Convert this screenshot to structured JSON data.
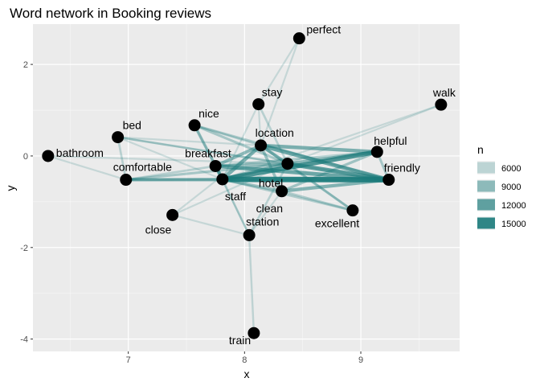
{
  "chart_data": {
    "type": "scatter",
    "title": "Word network in Booking reviews",
    "xlabel": "x",
    "ylabel": "y",
    "xlim": [
      6.18,
      9.85
    ],
    "ylim": [
      -4.27,
      2.88
    ],
    "x_ticks": [
      7,
      8,
      9
    ],
    "y_ticks": [
      -4,
      -2,
      0,
      2
    ],
    "grid": true,
    "nodes": [
      {
        "label": "perfect",
        "x": 8.47,
        "y": 2.57
      },
      {
        "label": "walk",
        "x": 9.69,
        "y": 1.12
      },
      {
        "label": "stay",
        "x": 8.12,
        "y": 1.13
      },
      {
        "label": "nice",
        "x": 7.57,
        "y": 0.67
      },
      {
        "label": "bed",
        "x": 6.91,
        "y": 0.41
      },
      {
        "label": "location",
        "x": 8.14,
        "y": 0.23
      },
      {
        "label": "helpful",
        "x": 9.14,
        "y": 0.09
      },
      {
        "label": "bathroom",
        "x": 6.31,
        "y": 0.0
      },
      {
        "label": "breakfast",
        "x": 7.75,
        "y": -0.22
      },
      {
        "label": "hotel",
        "x": 8.37,
        "y": -0.17
      },
      {
        "label": "friendly",
        "x": 9.24,
        "y": -0.52
      },
      {
        "label": "comfortable",
        "x": 6.98,
        "y": -0.52
      },
      {
        "label": "staff",
        "x": 7.81,
        "y": -0.51
      },
      {
        "label": "clean",
        "x": 8.32,
        "y": -0.77
      },
      {
        "label": "excellent",
        "x": 8.93,
        "y": -1.19
      },
      {
        "label": "close",
        "x": 7.38,
        "y": -1.29
      },
      {
        "label": "station",
        "x": 8.04,
        "y": -1.73
      },
      {
        "label": "train",
        "x": 8.08,
        "y": -3.87
      }
    ],
    "edges": [
      {
        "from": "staff",
        "to": "friendly",
        "n": 15000
      },
      {
        "from": "staff",
        "to": "helpful",
        "n": 13000
      },
      {
        "from": "hotel",
        "to": "friendly",
        "n": 12000
      },
      {
        "from": "breakfast",
        "to": "friendly",
        "n": 11000
      },
      {
        "from": "location",
        "to": "friendly",
        "n": 11000
      },
      {
        "from": "breakfast",
        "to": "staff",
        "n": 10000
      },
      {
        "from": "staff",
        "to": "hotel",
        "n": 10000
      },
      {
        "from": "location",
        "to": "helpful",
        "n": 10000
      },
      {
        "from": "location",
        "to": "staff",
        "n": 10000
      },
      {
        "from": "clean",
        "to": "friendly",
        "n": 9500
      },
      {
        "from": "location",
        "to": "breakfast",
        "n": 9000
      },
      {
        "from": "comfortable",
        "to": "friendly",
        "n": 9000
      },
      {
        "from": "hotel",
        "to": "helpful",
        "n": 9000
      },
      {
        "from": "location",
        "to": "hotel",
        "n": 9000
      },
      {
        "from": "staff",
        "to": "clean",
        "n": 8000
      },
      {
        "from": "breakfast",
        "to": "hotel",
        "n": 8000
      },
      {
        "from": "nice",
        "to": "staff",
        "n": 8000
      },
      {
        "from": "location",
        "to": "clean",
        "n": 8000
      },
      {
        "from": "comfortable",
        "to": "staff",
        "n": 7500
      },
      {
        "from": "clean",
        "to": "helpful",
        "n": 7500
      },
      {
        "from": "comfortable",
        "to": "hotel",
        "n": 7000
      },
      {
        "from": "nice",
        "to": "hotel",
        "n": 7000
      },
      {
        "from": "location",
        "to": "excellent",
        "n": 7000
      },
      {
        "from": "nice",
        "to": "friendly",
        "n": 6500
      },
      {
        "from": "clean",
        "to": "excellent",
        "n": 6500
      },
      {
        "from": "staff",
        "to": "excellent",
        "n": 6500
      },
      {
        "from": "breakfast",
        "to": "helpful",
        "n": 6500
      },
      {
        "from": "stay",
        "to": "hotel",
        "n": 6000
      },
      {
        "from": "bed",
        "to": "comfortable",
        "n": 6000
      },
      {
        "from": "bed",
        "to": "hotel",
        "n": 6000
      },
      {
        "from": "bed",
        "to": "friendly",
        "n": 5500
      },
      {
        "from": "nice",
        "to": "location",
        "n": 6000
      },
      {
        "from": "comfortable",
        "to": "breakfast",
        "n": 6000
      },
      {
        "from": "station",
        "to": "train",
        "n": 5500
      },
      {
        "from": "station",
        "to": "staff",
        "n": 6000
      },
      {
        "from": "station",
        "to": "hotel",
        "n": 6000
      },
      {
        "from": "station",
        "to": "clean",
        "n": 5000
      },
      {
        "from": "station",
        "to": "breakfast",
        "n": 5000
      },
      {
        "from": "close",
        "to": "station",
        "n": 5000
      },
      {
        "from": "close",
        "to": "hotel",
        "n": 5000
      },
      {
        "from": "close",
        "to": "location",
        "n": 5000
      },
      {
        "from": "perfect",
        "to": "location",
        "n": 5000
      },
      {
        "from": "perfect",
        "to": "stay",
        "n": 5000
      },
      {
        "from": "walk",
        "to": "hotel",
        "n": 5000
      },
      {
        "from": "walk",
        "to": "staff",
        "n": 5000
      },
      {
        "from": "bathroom",
        "to": "hotel",
        "n": 5000
      },
      {
        "from": "bathroom",
        "to": "comfortable",
        "n": 5000
      },
      {
        "from": "stay",
        "to": "staff",
        "n": 5000
      },
      {
        "from": "stay",
        "to": "location",
        "n": 5000
      },
      {
        "from": "excellent",
        "to": "hotel",
        "n": 6000
      },
      {
        "from": "bed",
        "to": "staff",
        "n": 5000
      },
      {
        "from": "bed",
        "to": "location",
        "n": 5000
      },
      {
        "from": "nice",
        "to": "breakfast",
        "n": 5500
      },
      {
        "from": "friendly",
        "to": "helpful",
        "n": 7000
      }
    ],
    "legend": {
      "title": "n",
      "position": "right",
      "entries": [
        {
          "label": "6000",
          "value": 6000
        },
        {
          "label": "9000",
          "value": 9000
        },
        {
          "label": "12000",
          "value": 12000
        },
        {
          "label": "15000",
          "value": 15000
        }
      ]
    },
    "colors": {
      "edge": "#1a7a7a",
      "panel": "#ebebeb",
      "grid_major": "#ffffff",
      "node": "#000000"
    }
  }
}
